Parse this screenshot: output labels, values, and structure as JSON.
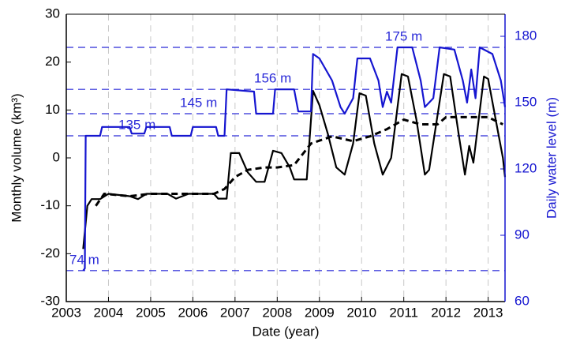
{
  "chart_data": {
    "type": "line",
    "xlabel": "Date (year)",
    "ylabel": "Monthly volume (km³)",
    "y2label": "Daily water level (m)",
    "xlim": [
      2003,
      2013.4
    ],
    "xticks": [
      2003,
      2004,
      2005,
      2006,
      2007,
      2008,
      2009,
      2010,
      2011,
      2012,
      2013
    ],
    "ylim": [
      -30,
      30
    ],
    "yticks": [
      -30,
      -20,
      -10,
      0,
      10,
      20,
      30
    ],
    "y2lim": [
      60,
      190
    ],
    "y2ticks": [
      60,
      90,
      120,
      150,
      180
    ],
    "x_grid": true,
    "reference_lines": [
      {
        "value": 74,
        "label": "74 m"
      },
      {
        "value": 135,
        "label": "135 m"
      },
      {
        "value": 145,
        "label": "145 m"
      },
      {
        "value": 156,
        "label": "156 m"
      },
      {
        "value": 175,
        "label": "175 m"
      }
    ],
    "reference_color": "#2a2ad8",
    "series": [
      {
        "color": "#000000",
        "style": "solid",
        "axis": "y",
        "x": [
          2003.4,
          2003.5,
          2003.6,
          2003.8,
          2004.0,
          2004.5,
          2004.7,
          2004.9,
          2005.4,
          2005.6,
          2005.9,
          2006.5,
          2006.6,
          2006.8,
          2006.9,
          2007.1,
          2007.3,
          2007.5,
          2007.7,
          2007.9,
          2008.1,
          2008.3,
          2008.4,
          2008.7,
          2008.85,
          2009.0,
          2009.2,
          2009.4,
          2009.6,
          2009.8,
          2009.95,
          2010.1,
          2010.3,
          2010.5,
          2010.7,
          2010.95,
          2011.1,
          2011.3,
          2011.5,
          2011.6,
          2011.95,
          2012.1,
          2012.3,
          2012.45,
          2012.55,
          2012.65,
          2012.9,
          2013.0,
          2013.2,
          2013.35,
          2013.4
        ],
        "values": [
          -19,
          -10,
          -8.6,
          -8.6,
          -7.5,
          -8,
          -8.6,
          -7.5,
          -7.5,
          -8.5,
          -7.5,
          -7.5,
          -8.5,
          -8.5,
          1,
          1,
          -3,
          -5,
          -5,
          1.5,
          1,
          -2,
          -4.5,
          -4.5,
          14,
          11,
          5,
          -2,
          -3.5,
          3,
          13.5,
          13,
          3,
          -3.5,
          0,
          17.5,
          17,
          8,
          -3.5,
          -2.5,
          17.5,
          17,
          5,
          -3.5,
          2.5,
          -1,
          17,
          16.5,
          7,
          0,
          -4
        ]
      },
      {
        "color": "#000000",
        "style": "dashed",
        "axis": "y",
        "x": [
          2003.7,
          2003.9,
          2004.5,
          2005.0,
          2006.0,
          2006.5,
          2006.75,
          2007.0,
          2007.3,
          2007.7,
          2008.0,
          2008.4,
          2008.8,
          2009.3,
          2009.8,
          2010.2,
          2010.6,
          2011.0,
          2011.4,
          2011.8,
          2012.0,
          2012.5,
          2013.0,
          2013.35
        ],
        "values": [
          -10,
          -7.5,
          -8,
          -7.5,
          -7.5,
          -7.5,
          -6.5,
          -4,
          -2.5,
          -2,
          -2,
          -1.5,
          3,
          4.5,
          3.5,
          4.5,
          6,
          8,
          7,
          7,
          8.5,
          8.5,
          8.5,
          7
        ]
      },
      {
        "color": "#1515d0",
        "style": "solid",
        "axis": "y2",
        "x": [
          2003.4,
          2003.44,
          2003.46,
          2003.8,
          2003.85,
          2004.5,
          2004.55,
          2004.85,
          2004.9,
          2005.45,
          2005.5,
          2005.95,
          2006.0,
          2006.55,
          2006.6,
          2006.75,
          2006.8,
          2007.45,
          2007.5,
          2007.9,
          2007.95,
          2008.4,
          2008.5,
          2008.8,
          2008.85,
          2009.0,
          2009.3,
          2009.5,
          2009.6,
          2009.8,
          2009.9,
          2010.2,
          2010.4,
          2010.5,
          2010.6,
          2010.7,
          2010.85,
          2011.2,
          2011.4,
          2011.5,
          2011.7,
          2011.85,
          2012.2,
          2012.4,
          2012.5,
          2012.6,
          2012.7,
          2012.8,
          2013.1,
          2013.3,
          2013.4
        ],
        "values": [
          74,
          75,
          135,
          135,
          139,
          139,
          136,
          136,
          139,
          139,
          135,
          135,
          139,
          139,
          135,
          135,
          156,
          155,
          145,
          145,
          156,
          156,
          146,
          146,
          172,
          170,
          160,
          148,
          145,
          152,
          170,
          170,
          160,
          148,
          155,
          150,
          175,
          175,
          160,
          148,
          152,
          175,
          174,
          160,
          150,
          165,
          152,
          175,
          172,
          160,
          148
        ]
      }
    ]
  }
}
